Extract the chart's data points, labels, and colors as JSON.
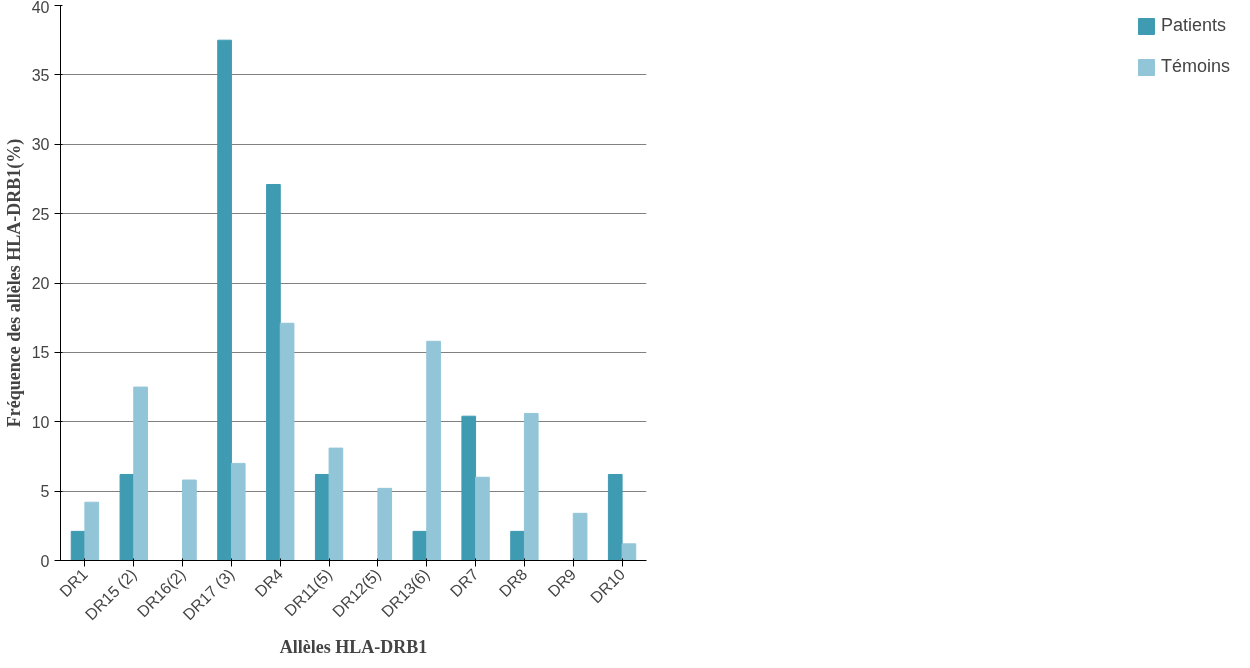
{
  "chart_data": {
    "type": "bar",
    "xlabel": "Allèles HLA-DRB1",
    "ylabel": "Fréquence des allèles HLA-DRB1(%)",
    "categories": [
      "DR1",
      "DR15 (2)",
      "DR16(2)",
      "DR17 (3)",
      "DR4",
      "DR11(5)",
      "DR12(5)",
      "DR13(6)",
      "DR7",
      "DR8",
      "DR9",
      "DR10"
    ],
    "series": [
      {
        "name": "Patients",
        "color": "#3f9bb1",
        "values": [
          2.1,
          6.2,
          0,
          37.5,
          27.1,
          6.2,
          0,
          2.1,
          10.4,
          2.1,
          0,
          6.2
        ]
      },
      {
        "name": "Témoins",
        "color": "#92c5d8",
        "values": [
          4.2,
          12.5,
          5.8,
          7.0,
          17.1,
          8.1,
          5.2,
          15.8,
          6.0,
          10.6,
          3.4,
          1.2
        ]
      }
    ],
    "ylim": [
      0,
      40
    ],
    "yticks": [
      0,
      5,
      10,
      15,
      20,
      25,
      30,
      35,
      40
    ],
    "grid": "y",
    "legend": "right"
  }
}
